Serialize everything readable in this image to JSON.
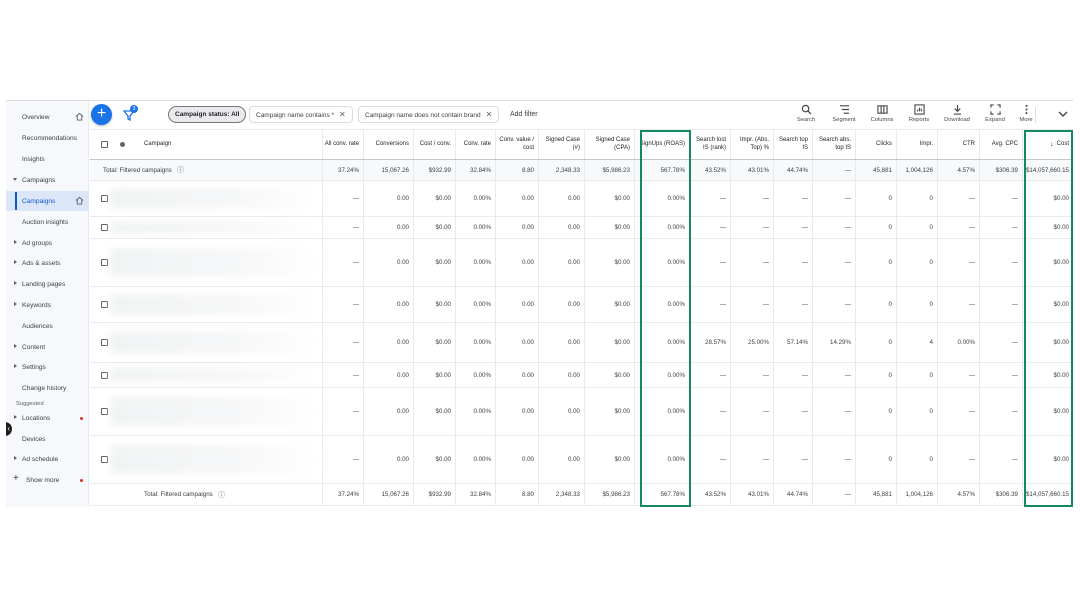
{
  "sidebar": {
    "items": [
      {
        "label": "Overview",
        "home": true
      },
      {
        "label": "Recommendations"
      },
      {
        "label": "Insights"
      },
      {
        "label": "Campaigns",
        "expand": "down"
      },
      {
        "label": "Campaigns",
        "active": true,
        "home": true
      },
      {
        "label": "Auction insights"
      },
      {
        "label": "Ad groups",
        "expand": "right"
      },
      {
        "label": "Ads & assets",
        "expand": "right"
      },
      {
        "label": "Landing pages",
        "expand": "right"
      },
      {
        "label": "Keywords",
        "expand": "right"
      },
      {
        "label": "Audiences"
      },
      {
        "label": "Content",
        "expand": "right"
      },
      {
        "label": "Settings",
        "expand": "right"
      },
      {
        "label": "Change history"
      }
    ],
    "suggested_label": "Suggested",
    "suggested": [
      {
        "label": "Locations",
        "expand": "right",
        "dot": true
      },
      {
        "label": "Devices"
      },
      {
        "label": "Ad schedule",
        "expand": "right"
      }
    ],
    "show_more": "Show more"
  },
  "toolbar": {
    "filter_count": "3",
    "chips": [
      "Campaign status: All",
      "Campaign name contains *",
      "Campaign name does not contain brand"
    ],
    "add_filter": "Add filter",
    "buttons": [
      "Search",
      "Segment",
      "Columns",
      "Reports",
      "Download",
      "Expand",
      "More"
    ]
  },
  "table": {
    "campaign_header": "Campaign",
    "headers": [
      "All conv. rate",
      "Conversions",
      "Cost / conv.",
      "Conv. rate",
      "Conv. value / cost",
      "Signed Case (#)",
      "Signed Case (CPA)",
      "SignUps (ROAS)",
      "Search lost IS (rank)",
      "Impr. (Abs. Top) %",
      "Search top IS",
      "Search abs. top IS",
      "Clicks",
      "Impr.",
      "CTR",
      "Avg. CPC",
      "Cost"
    ],
    "total_label": "Total: Filtered campaigns",
    "totals": [
      "37.24%",
      "15,067.26",
      "$932.99",
      "32.84%",
      "8.80",
      "2,348.33",
      "$5,986.23",
      "567.78%",
      "43.52%",
      "43.01%",
      "44.74%",
      "—",
      "45,881",
      "1,004,126",
      "4.57%",
      "$306.39",
      "$14,057,660.15"
    ],
    "rows": [
      [
        "—",
        "0.00",
        "$0.00",
        "0.00%",
        "0.00",
        "0.00",
        "$0.00",
        "0.00%",
        "—",
        "—",
        "—",
        "—",
        "0",
        "0",
        "—",
        "—",
        "$0.00"
      ],
      [
        "—",
        "0.00",
        "$0.00",
        "0.00%",
        "0.00",
        "0.00",
        "$0.00",
        "0.00%",
        "—",
        "—",
        "—",
        "—",
        "0",
        "0",
        "—",
        "—",
        "$0.00"
      ],
      [
        "—",
        "0.00",
        "$0.00",
        "0.00%",
        "0.00",
        "0.00",
        "$0.00",
        "0.00%",
        "—",
        "—",
        "—",
        "—",
        "0",
        "0",
        "—",
        "—",
        "$0.00"
      ],
      [
        "—",
        "0.00",
        "$0.00",
        "0.00%",
        "0.00",
        "0.00",
        "$0.00",
        "0.00%",
        "—",
        "—",
        "—",
        "—",
        "0",
        "0",
        "—",
        "—",
        "$0.00"
      ],
      [
        "—",
        "0.00",
        "$0.00",
        "0.00%",
        "0.00",
        "0.00",
        "$0.00",
        "0.00%",
        "28.57%",
        "25.00%",
        "57.14%",
        "14.29%",
        "0",
        "4",
        "0.00%",
        "—",
        "$0.00"
      ],
      [
        "—",
        "0.00",
        "$0.00",
        "0.00%",
        "0.00",
        "0.00",
        "$0.00",
        "0.00%",
        "—",
        "—",
        "—",
        "—",
        "0",
        "0",
        "—",
        "—",
        "$0.00"
      ],
      [
        "—",
        "0.00",
        "$0.00",
        "0.00%",
        "0.00",
        "0.00",
        "$0.00",
        "0.00%",
        "—",
        "—",
        "—",
        "—",
        "0",
        "0",
        "—",
        "—",
        "$0.00"
      ],
      [
        "—",
        "0.00",
        "$0.00",
        "0.00%",
        "0.00",
        "0.00",
        "$0.00",
        "0.00%",
        "—",
        "—",
        "—",
        "—",
        "0",
        "0",
        "—",
        "—",
        "$0.00"
      ]
    ],
    "footer_label": "Total: Filtered campaigns",
    "footer": [
      "37.24%",
      "15,067.26",
      "$932.99",
      "32.84%",
      "8.80",
      "2,348.33",
      "$5,986.23",
      "567.78%",
      "43.52%",
      "43.01%",
      "44.74%",
      "—",
      "45,881",
      "1,004,126",
      "4.57%",
      "$306.39",
      "$14,057,660.15"
    ]
  },
  "colors": {
    "accent": "#1a73e8",
    "highlight": "#138a5e",
    "active_nav": "#dbe6f9"
  }
}
